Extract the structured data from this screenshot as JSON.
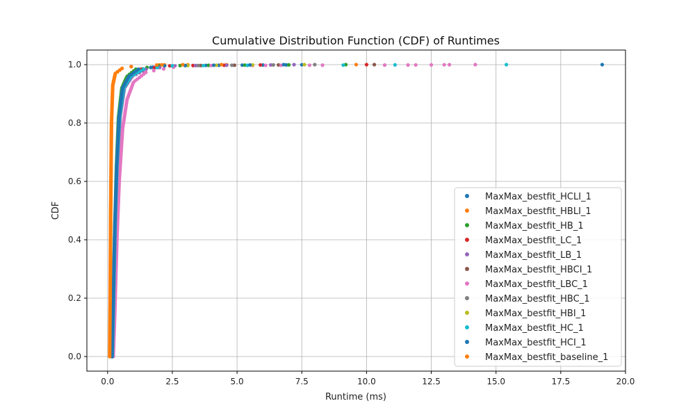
{
  "chart_data": {
    "type": "scatter",
    "title": "Cumulative Distribution Function (CDF) of Runtimes",
    "xlabel": "Runtime (ms)",
    "ylabel": "CDF",
    "xlim": [
      -0.8,
      20.0
    ],
    "ylim": [
      -0.05,
      1.05
    ],
    "xticks": [
      0.0,
      2.5,
      5.0,
      7.5,
      10.0,
      12.5,
      15.0,
      17.5,
      20.0
    ],
    "xtick_labels": [
      "0.0",
      "2.5",
      "5.0",
      "7.5",
      "10.0",
      "12.5",
      "15.0",
      "17.5",
      "20.0"
    ],
    "yticks": [
      0.0,
      0.2,
      0.4,
      0.6,
      0.8,
      1.0
    ],
    "ytick_labels": [
      "0.0",
      "0.2",
      "0.4",
      "0.6",
      "0.8",
      "1.0"
    ],
    "grid": true,
    "legend_position": "lower-right",
    "series": [
      {
        "name": "MaxMax_bestfit_HCLI_1",
        "color": "#1f77b4",
        "cdf_knots": [
          [
            0.18,
            0.0
          ],
          [
            0.22,
            0.1
          ],
          [
            0.27,
            0.3
          ],
          [
            0.33,
            0.5
          ],
          [
            0.4,
            0.7
          ],
          [
            0.5,
            0.85
          ],
          [
            0.65,
            0.93
          ],
          [
            0.9,
            0.97
          ],
          [
            1.5,
            0.99
          ],
          [
            3.0,
            0.997
          ]
        ],
        "tail": [
          3.8,
          4.3,
          5.2,
          6.0,
          6.9,
          7.5,
          19.1
        ]
      },
      {
        "name": "MaxMax_bestfit_HBLI_1",
        "color": "#ff7f0e",
        "cdf_knots": [
          [
            0.08,
            0.0
          ],
          [
            0.1,
            0.2
          ],
          [
            0.12,
            0.5
          ],
          [
            0.15,
            0.8
          ],
          [
            0.2,
            0.93
          ],
          [
            0.3,
            0.97
          ],
          [
            0.6,
            0.99
          ],
          [
            1.2,
            0.996
          ],
          [
            2.0,
            0.999
          ]
        ],
        "tail": [
          2.2,
          3.1,
          4.6,
          9.6
        ]
      },
      {
        "name": "MaxMax_bestfit_HB_1",
        "color": "#2ca02c",
        "cdf_knots": [
          [
            0.17,
            0.0
          ],
          [
            0.22,
            0.2
          ],
          [
            0.28,
            0.45
          ],
          [
            0.34,
            0.65
          ],
          [
            0.42,
            0.82
          ],
          [
            0.55,
            0.92
          ],
          [
            0.75,
            0.96
          ],
          [
            1.1,
            0.985
          ],
          [
            2.0,
            0.996
          ]
        ],
        "tail": [
          2.8,
          3.9,
          5.3,
          7.0,
          9.2
        ]
      },
      {
        "name": "MaxMax_bestfit_LC_1",
        "color": "#d62728",
        "cdf_knots": [
          [
            0.18,
            0.0
          ],
          [
            0.23,
            0.2
          ],
          [
            0.29,
            0.45
          ],
          [
            0.36,
            0.65
          ],
          [
            0.45,
            0.82
          ],
          [
            0.6,
            0.92
          ],
          [
            0.85,
            0.96
          ],
          [
            1.3,
            0.985
          ],
          [
            2.4,
            0.996
          ]
        ],
        "tail": [
          3.3,
          4.5,
          5.9,
          10.0
        ]
      },
      {
        "name": "MaxMax_bestfit_LB_1",
        "color": "#9467bd",
        "cdf_knots": [
          [
            0.19,
            0.0
          ],
          [
            0.24,
            0.2
          ],
          [
            0.3,
            0.45
          ],
          [
            0.38,
            0.65
          ],
          [
            0.48,
            0.82
          ],
          [
            0.65,
            0.92
          ],
          [
            0.95,
            0.96
          ],
          [
            1.5,
            0.985
          ],
          [
            2.6,
            0.996
          ]
        ],
        "tail": [
          3.4,
          4.6,
          6.3,
          7.2
        ]
      },
      {
        "name": "MaxMax_bestfit_HBCI_1",
        "color": "#8c564b",
        "cdf_knots": [
          [
            0.18,
            0.0
          ],
          [
            0.23,
            0.2
          ],
          [
            0.29,
            0.45
          ],
          [
            0.36,
            0.65
          ],
          [
            0.46,
            0.82
          ],
          [
            0.62,
            0.92
          ],
          [
            0.9,
            0.96
          ],
          [
            1.4,
            0.985
          ],
          [
            2.5,
            0.996
          ]
        ],
        "tail": [
          3.6,
          4.9,
          6.6,
          10.3
        ]
      },
      {
        "name": "MaxMax_bestfit_LBC_1",
        "color": "#e377c2",
        "cdf_knots": [
          [
            0.22,
            0.0
          ],
          [
            0.28,
            0.15
          ],
          [
            0.36,
            0.4
          ],
          [
            0.45,
            0.6
          ],
          [
            0.58,
            0.78
          ],
          [
            0.75,
            0.88
          ],
          [
            1.0,
            0.94
          ],
          [
            1.5,
            0.975
          ],
          [
            2.6,
            0.992
          ],
          [
            4.0,
            0.997
          ]
        ],
        "tail": [
          5.6,
          6.1,
          6.7,
          7.8,
          8.3,
          10.7,
          11.6,
          11.9,
          12.5,
          13.0,
          13.2,
          14.2
        ]
      },
      {
        "name": "MaxMax_bestfit_HBC_1",
        "color": "#7f7f7f",
        "cdf_knots": [
          [
            0.18,
            0.0
          ],
          [
            0.23,
            0.2
          ],
          [
            0.29,
            0.45
          ],
          [
            0.36,
            0.65
          ],
          [
            0.46,
            0.82
          ],
          [
            0.62,
            0.92
          ],
          [
            0.9,
            0.96
          ],
          [
            1.4,
            0.985
          ],
          [
            2.5,
            0.996
          ]
        ],
        "tail": [
          3.5,
          4.8,
          6.4,
          8.0
        ]
      },
      {
        "name": "MaxMax_bestfit_HBI_1",
        "color": "#bcbd22",
        "cdf_knots": [
          [
            0.17,
            0.0
          ],
          [
            0.22,
            0.2
          ],
          [
            0.28,
            0.45
          ],
          [
            0.35,
            0.65
          ],
          [
            0.44,
            0.82
          ],
          [
            0.58,
            0.92
          ],
          [
            0.82,
            0.96
          ],
          [
            1.2,
            0.985
          ],
          [
            2.2,
            0.996
          ]
        ],
        "tail": [
          3.1,
          4.2,
          5.6,
          7.6
        ]
      },
      {
        "name": "MaxMax_bestfit_HC_1",
        "color": "#17becf",
        "cdf_knots": [
          [
            0.18,
            0.0
          ],
          [
            0.23,
            0.2
          ],
          [
            0.29,
            0.45
          ],
          [
            0.36,
            0.65
          ],
          [
            0.46,
            0.82
          ],
          [
            0.62,
            0.92
          ],
          [
            0.9,
            0.96
          ],
          [
            1.4,
            0.985
          ],
          [
            2.5,
            0.996
          ]
        ],
        "tail": [
          3.7,
          5.4,
          9.1,
          11.1,
          15.4
        ]
      },
      {
        "name": "MaxMax_bestfit_HCI_1",
        "color": "#1f77b4",
        "cdf_knots": [
          [
            0.17,
            0.0
          ],
          [
            0.22,
            0.2
          ],
          [
            0.28,
            0.45
          ],
          [
            0.35,
            0.65
          ],
          [
            0.44,
            0.82
          ],
          [
            0.58,
            0.92
          ],
          [
            0.82,
            0.96
          ],
          [
            1.2,
            0.985
          ],
          [
            2.2,
            0.996
          ]
        ],
        "tail": [
          3.0,
          4.1,
          5.5,
          6.8
        ]
      },
      {
        "name": "MaxMax_bestfit_baseline_1",
        "color": "#ff7f0e",
        "cdf_knots": [
          [
            0.08,
            0.0
          ],
          [
            0.1,
            0.2
          ],
          [
            0.12,
            0.5
          ],
          [
            0.15,
            0.8
          ],
          [
            0.2,
            0.93
          ],
          [
            0.3,
            0.97
          ],
          [
            0.6,
            0.99
          ],
          [
            1.2,
            0.996
          ],
          [
            1.9,
            0.999
          ]
        ],
        "tail": [
          2.1,
          2.9,
          4.4
        ]
      }
    ]
  }
}
